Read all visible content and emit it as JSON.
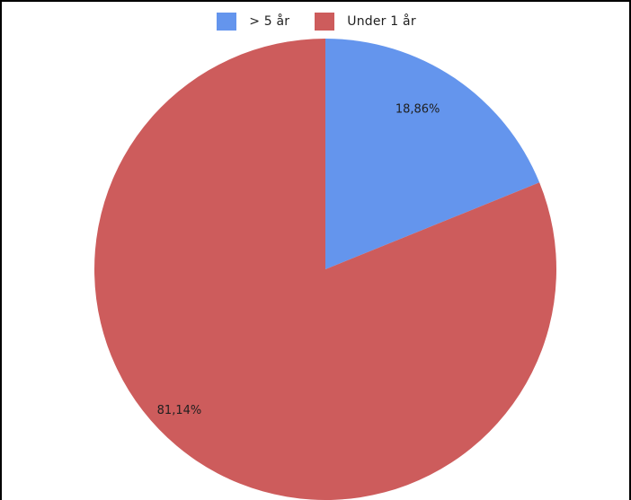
{
  "chart_data": {
    "type": "pie",
    "title": "",
    "slices": [
      {
        "name": "> 5 år",
        "value": 18.86,
        "label": "18,86%",
        "color": "#6495ED"
      },
      {
        "name": "Under 1 år",
        "value": 81.14,
        "label": "81,14%",
        "color": "#CD5C5C"
      }
    ],
    "start_angle": "12 o'clock",
    "direction": "clockwise",
    "legend_position": "top",
    "grid": false
  }
}
